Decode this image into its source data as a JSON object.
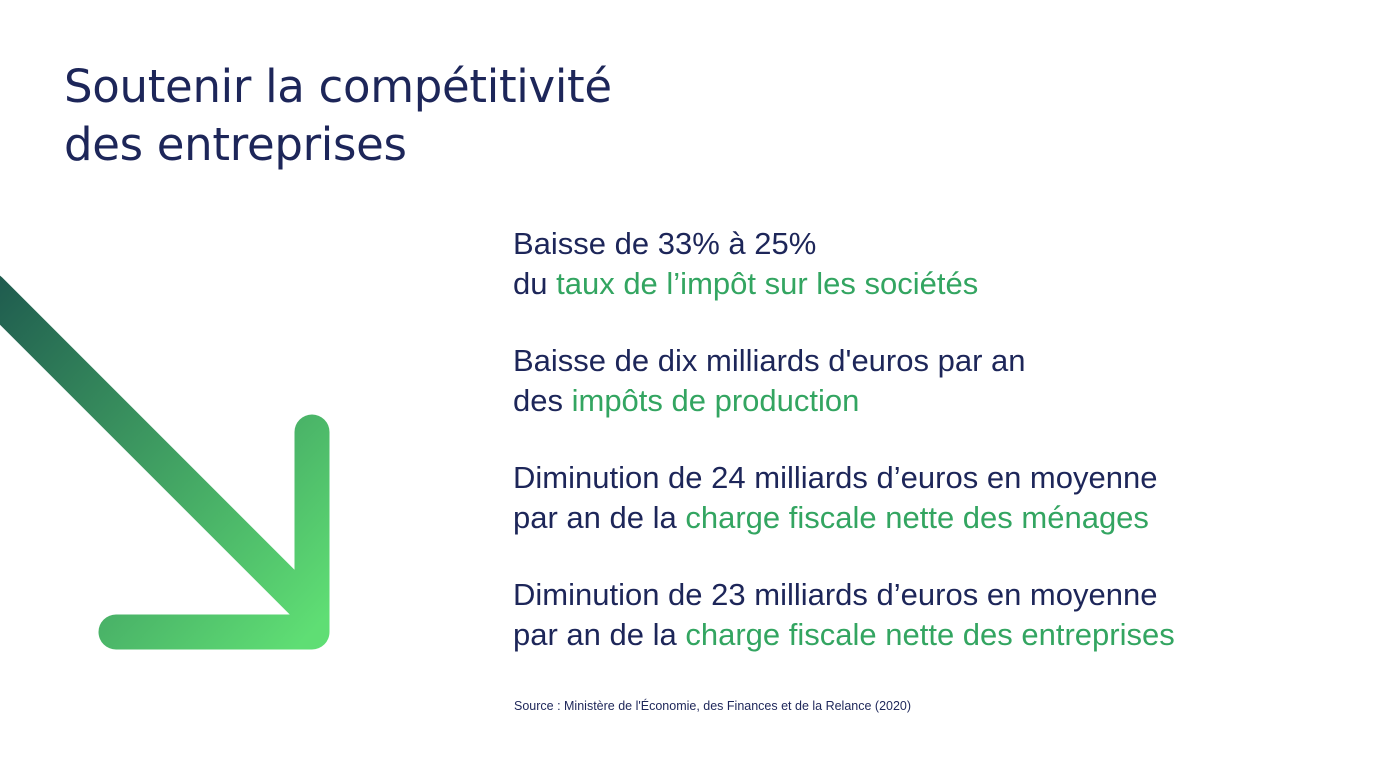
{
  "title": {
    "line1": "Soutenir la compétitivité",
    "line2": "des entreprises"
  },
  "decoration": {
    "arrow_icon": "arrow-down-right-icon",
    "arrow_gradient_start": "#1f5c4f",
    "arrow_gradient_end": "#5fde74"
  },
  "colors": {
    "text": "#1d2659",
    "highlight": "#33a561",
    "background": "#ffffff"
  },
  "facts": [
    {
      "line1": "Baisse de 33% à 25%",
      "line2_prefix": "du ",
      "line2_highlight": "taux de l’impôt sur les sociétés"
    },
    {
      "line1": "Baisse de dix milliards d'euros par an",
      "line2_prefix": "des ",
      "line2_highlight": "impôts de production"
    },
    {
      "line1": "Diminution de 24 milliards d’euros en moyenne",
      "line2_prefix": "par an de la ",
      "line2_highlight": "charge fiscale nette des ménages"
    },
    {
      "line1": "Diminution de 23 milliards d’euros en moyenne",
      "line2_prefix": "par an de la ",
      "line2_highlight": "charge fiscale nette des entreprises"
    }
  ],
  "source": "Source : Ministère de l'Économie, des Finances et de la Relance (2020)"
}
